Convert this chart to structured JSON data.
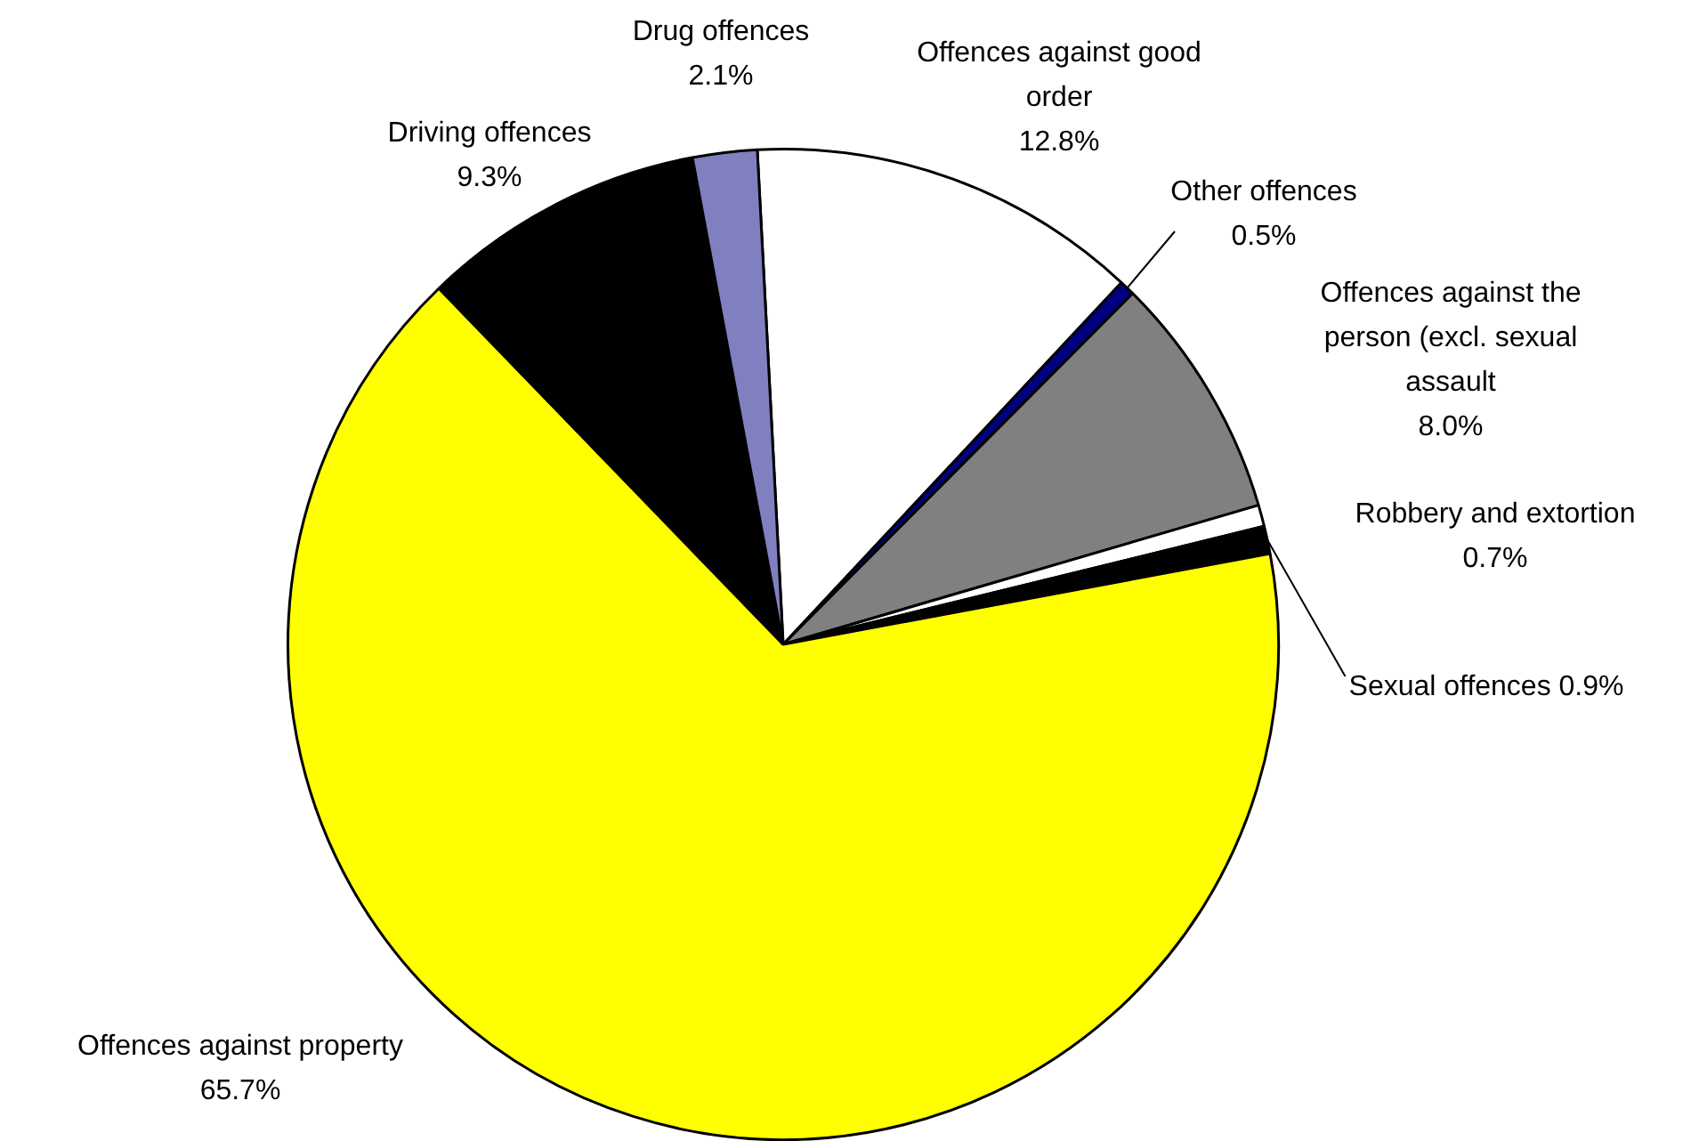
{
  "chart_data": {
    "type": "pie",
    "categories": [
      "Offences against good order",
      "Other offences",
      "Offences against the person (excl. sexual assault",
      "Robbery and extortion",
      "Sexual offences",
      "Offences against property",
      "Driving offences",
      "Drug offences"
    ],
    "values": [
      12.8,
      0.5,
      8.0,
      0.7,
      0.9,
      65.7,
      9.3,
      2.1
    ],
    "value_labels": [
      "12.8%",
      "0.5%",
      "8.0%",
      "0.7%",
      "0.9%",
      "65.7%",
      "9.3%",
      "2.1%"
    ],
    "colors": [
      "#ffffff",
      "#000080",
      "#808080",
      "#ffffff",
      "#000000",
      "#ffff00",
      "#000000",
      "#8080c0"
    ],
    "legend": false
  }
}
